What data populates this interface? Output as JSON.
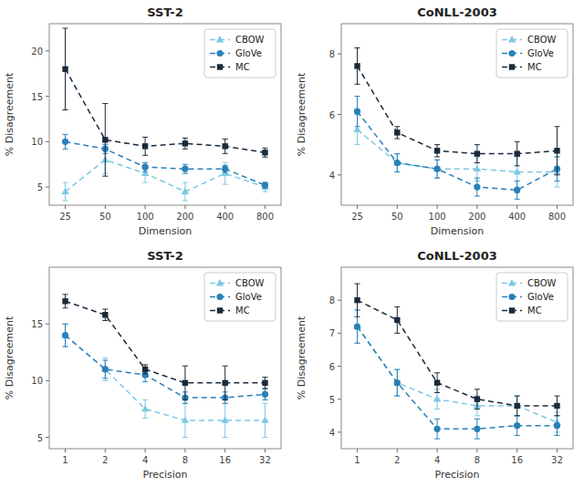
{
  "chart_data": [
    {
      "type": "line",
      "title": "SST-2",
      "xlabel": "Dimension",
      "ylabel": "% Disagreement",
      "categories": [
        25,
        50,
        100,
        200,
        400,
        800
      ],
      "series": [
        {
          "name": "CBOW",
          "color": "#7ec8e3",
          "marker": "triangle",
          "line_style": "dashed",
          "values": [
            4.5,
            8.0,
            6.5,
            4.5,
            6.5,
            5.0
          ],
          "errors": [
            1.0,
            1.5,
            1.0,
            1.0,
            1.2,
            0.5
          ]
        },
        {
          "name": "GloVe",
          "color": "#2980b9",
          "marker": "circle",
          "line_style": "dashed",
          "values": [
            10.0,
            9.2,
            7.2,
            7.0,
            7.0,
            5.2
          ],
          "errors": [
            0.8,
            0.5,
            0.5,
            0.5,
            0.4,
            0.3
          ]
        },
        {
          "name": "MC",
          "color": "#1a2a3a",
          "marker": "square",
          "line_style": "dashed",
          "values": [
            18.0,
            10.2,
            9.5,
            9.8,
            9.5,
            8.8
          ],
          "errors": [
            4.5,
            4.0,
            1.0,
            0.6,
            0.8,
            0.5
          ]
        }
      ],
      "ylim": [
        3,
        23
      ],
      "yticks": [
        5,
        10,
        15,
        20
      ],
      "legend": "upper right",
      "grid": false
    },
    {
      "type": "line",
      "title": "CoNLL-2003",
      "xlabel": "Dimension",
      "ylabel": "% Disagreement",
      "categories": [
        25,
        50,
        100,
        200,
        400,
        800
      ],
      "series": [
        {
          "name": "CBOW",
          "color": "#7ec8e3",
          "marker": "triangle",
          "line_style": "dashed",
          "values": [
            5.5,
            4.4,
            4.2,
            4.2,
            4.1,
            4.1
          ],
          "errors": [
            0.5,
            0.3,
            0.3,
            0.4,
            0.5,
            0.5
          ]
        },
        {
          "name": "GloVe",
          "color": "#2980b9",
          "marker": "circle",
          "line_style": "dashed",
          "values": [
            6.1,
            4.4,
            4.2,
            3.6,
            3.5,
            4.2
          ],
          "errors": [
            0.5,
            0.3,
            0.3,
            0.3,
            0.3,
            0.4
          ]
        },
        {
          "name": "MC",
          "color": "#1a2a3a",
          "marker": "square",
          "line_style": "dashed",
          "values": [
            7.6,
            5.4,
            4.8,
            4.7,
            4.7,
            4.8
          ],
          "errors": [
            0.6,
            0.2,
            0.2,
            0.3,
            0.4,
            0.8
          ]
        }
      ],
      "ylim": [
        3,
        9
      ],
      "yticks": [
        4,
        6,
        8
      ],
      "legend": "upper right",
      "grid": false
    },
    {
      "type": "line",
      "title": "SST-2",
      "xlabel": "Precision",
      "ylabel": "% Disagreement",
      "categories": [
        1,
        2,
        4,
        8,
        16,
        32
      ],
      "series": [
        {
          "name": "CBOW",
          "color": "#7ec8e3",
          "marker": "triangle",
          "line_style": "dashed",
          "values": [
            14.0,
            11.0,
            7.5,
            6.5,
            6.5,
            6.5
          ],
          "errors": [
            1.0,
            1.0,
            0.8,
            1.5,
            1.5,
            1.5
          ]
        },
        {
          "name": "GloVe",
          "color": "#2980b9",
          "marker": "circle",
          "line_style": "dashed",
          "values": [
            14.0,
            11.0,
            10.5,
            8.5,
            8.5,
            8.8
          ],
          "errors": [
            1.0,
            0.8,
            0.6,
            0.5,
            0.5,
            0.5
          ]
        },
        {
          "name": "MC",
          "color": "#1a2a3a",
          "marker": "square",
          "line_style": "dashed",
          "values": [
            17.0,
            15.8,
            11.0,
            9.8,
            9.8,
            9.8
          ],
          "errors": [
            0.6,
            0.5,
            0.4,
            1.5,
            1.5,
            0.5
          ]
        }
      ],
      "ylim": [
        4,
        20
      ],
      "yticks": [
        5,
        10,
        15
      ],
      "legend": "upper right",
      "grid": false
    },
    {
      "type": "line",
      "title": "CoNLL-2003",
      "xlabel": "Precision",
      "ylabel": "% Disagreement",
      "categories": [
        1,
        2,
        4,
        8,
        16,
        32
      ],
      "series": [
        {
          "name": "CBOW",
          "color": "#7ec8e3",
          "marker": "triangle",
          "line_style": "dashed",
          "values": [
            7.2,
            5.5,
            5.0,
            4.8,
            4.8,
            4.3
          ],
          "errors": [
            0.5,
            0.4,
            0.3,
            0.3,
            0.3,
            0.3
          ]
        },
        {
          "name": "GloVe",
          "color": "#2980b9",
          "marker": "circle",
          "line_style": "dashed",
          "values": [
            7.2,
            5.5,
            4.1,
            4.1,
            4.2,
            4.2
          ],
          "errors": [
            0.5,
            0.4,
            0.3,
            0.3,
            0.3,
            0.3
          ]
        },
        {
          "name": "MC",
          "color": "#1a2a3a",
          "marker": "square",
          "line_style": "dashed",
          "values": [
            8.0,
            7.4,
            5.5,
            5.0,
            4.8,
            4.8
          ],
          "errors": [
            0.5,
            0.4,
            0.3,
            0.3,
            0.3,
            0.3
          ]
        }
      ],
      "ylim": [
        3.5,
        9
      ],
      "yticks": [
        4,
        5,
        6,
        7,
        8
      ],
      "legend": "upper right",
      "grid": false
    }
  ]
}
